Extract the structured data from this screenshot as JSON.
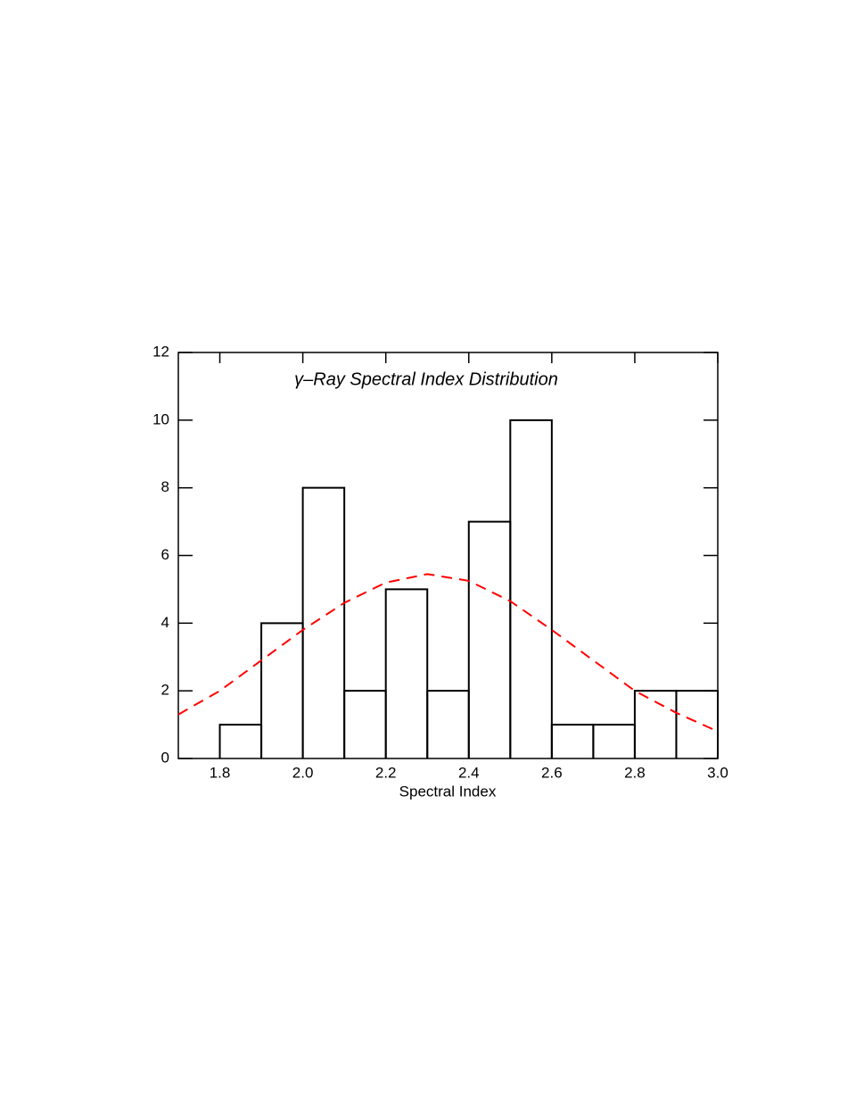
{
  "chart_data": {
    "type": "histogram",
    "title": "γ–Ray Spectral Index Distribution",
    "title_color": "#0000ff",
    "x_label": "Spectral Index",
    "bins": [
      1.8,
      1.9,
      2.0,
      2.1,
      2.2,
      2.3,
      2.4,
      2.5,
      2.6,
      2.7,
      2.8,
      2.9,
      3.0
    ],
    "counts": [
      1,
      4,
      8,
      2,
      5,
      2,
      7,
      10,
      1,
      1,
      2,
      2
    ],
    "color": "#000000",
    "fit": {
      "color": "#ff0000",
      "x": [
        1.7,
        1.8,
        1.9,
        2.0,
        2.1,
        2.2,
        2.3,
        2.4,
        2.5,
        2.6,
        2.7,
        2.8,
        2.9,
        3.0
      ],
      "values": [
        1.3,
        2.0,
        2.9,
        3.8,
        4.6,
        5.2,
        5.45,
        5.25,
        4.65,
        3.8,
        2.9,
        2.0,
        1.35,
        0.8
      ]
    },
    "xlim": [
      1.7,
      3.0
    ],
    "xticks": [
      1.8,
      {
        "value": 2,
        "label": "2.0"
      },
      2.2,
      2.4,
      2.6,
      2.8,
      {
        "value": 3,
        "label": "3.0"
      }
    ],
    "ylim": [
      0,
      12
    ],
    "yticks": [
      0,
      2,
      4,
      6,
      8,
      10,
      12
    ]
  }
}
